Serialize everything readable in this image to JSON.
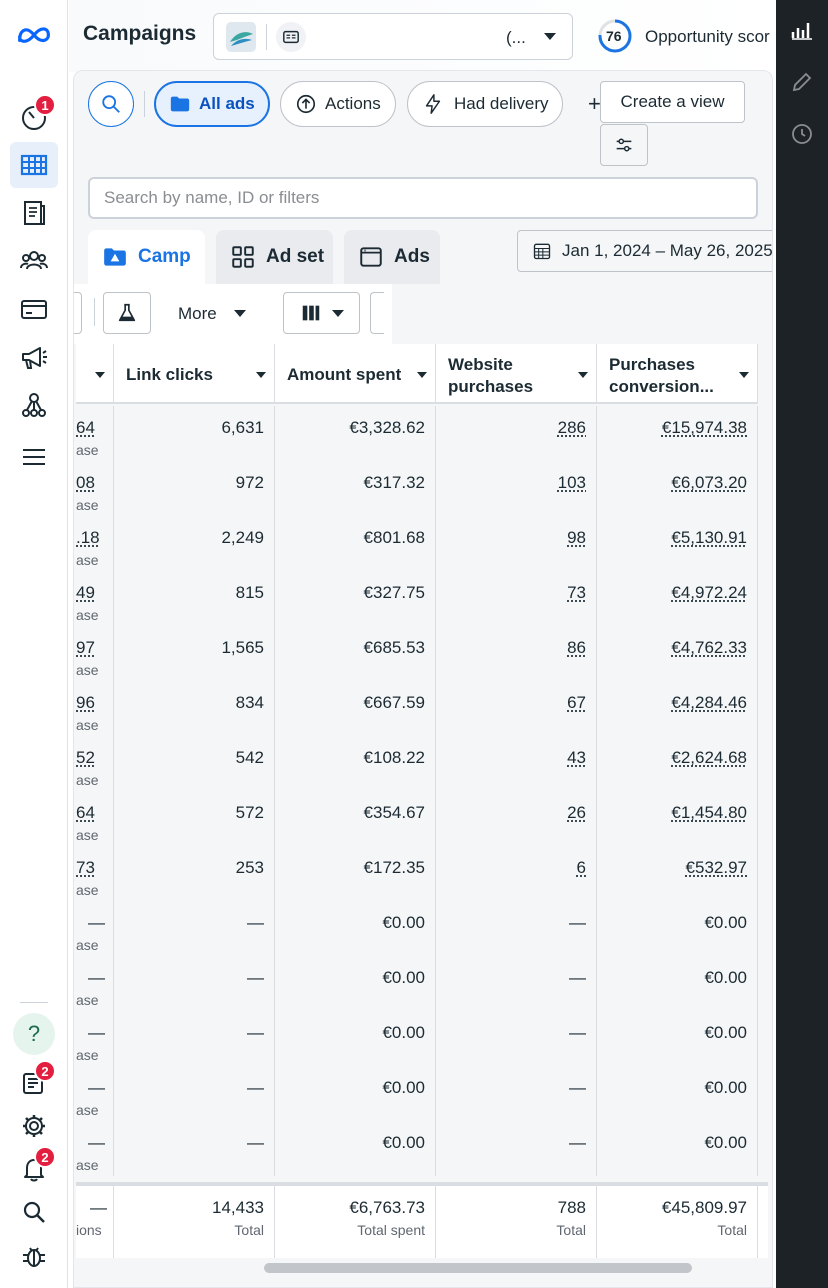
{
  "app": {
    "brand": "meta-logo",
    "accent": "#1b74e4"
  },
  "leftnav": {
    "items": [
      {
        "name": "account-overview",
        "icon": "gauge-icon",
        "badge": "1"
      },
      {
        "name": "campaigns",
        "icon": "table-icon",
        "active": true
      },
      {
        "name": "catalog",
        "icon": "catalog-icon"
      },
      {
        "name": "audiences",
        "icon": "audience-icon"
      },
      {
        "name": "billing",
        "icon": "card-icon"
      },
      {
        "name": "advertising",
        "icon": "megaphone-icon"
      },
      {
        "name": "business-tools",
        "icon": "hub-icon"
      },
      {
        "name": "all-tools",
        "icon": "menu-icon"
      }
    ],
    "bottom": [
      {
        "name": "help",
        "icon": "help-icon",
        "label": "?"
      },
      {
        "name": "news",
        "icon": "news-icon",
        "badge": "2"
      },
      {
        "name": "settings",
        "icon": "gear-icon"
      },
      {
        "name": "notifications",
        "icon": "bell-icon",
        "badge": "2"
      },
      {
        "name": "search",
        "icon": "search-icon"
      },
      {
        "name": "report-bug",
        "icon": "bug-icon"
      }
    ]
  },
  "header": {
    "title": "Campaigns",
    "account_text": "(...",
    "opportunity_score": "76",
    "opportunity_label": "Opportunity scor"
  },
  "toolbar": {
    "all_ads": "All ads",
    "actions": "Actions",
    "had_delivery": "Had delivery",
    "plus": "+",
    "create_view": "Create a view"
  },
  "search": {
    "placeholder": "Search by name, ID or filters"
  },
  "tabs": [
    {
      "label": "Camp",
      "icon": "campaign-icon"
    },
    {
      "label": "Ad set",
      "icon": "grid-icon"
    },
    {
      "label": "Ads",
      "icon": "ad-icon"
    }
  ],
  "date_range": "Jan 1, 2024 – May 26, 2025",
  "subbar": {
    "more": "More"
  },
  "table": {
    "columns": [
      {
        "label": ""
      },
      {
        "label": "Link clicks"
      },
      {
        "label": "Amount spent"
      },
      {
        "label": "Website purchases"
      },
      {
        "label": "Purchases conversion..."
      }
    ],
    "rows": [
      {
        "c0": "64",
        "c0s": "ase",
        "clicks": "6,631",
        "spent": "€3,328.62",
        "purch": "286",
        "conv": "€15,974.38",
        "u": true
      },
      {
        "c0": "08",
        "c0s": "ase",
        "clicks": "972",
        "spent": "€317.32",
        "purch": "103",
        "conv": "€6,073.20",
        "u": true
      },
      {
        "c0": ".18",
        "c0s": "ase",
        "clicks": "2,249",
        "spent": "€801.68",
        "purch": "98",
        "conv": "€5,130.91",
        "u": true
      },
      {
        "c0": "49",
        "c0s": "ase",
        "clicks": "815",
        "spent": "€327.75",
        "purch": "73",
        "conv": "€4,972.24",
        "u": true
      },
      {
        "c0": "97",
        "c0s": "ase",
        "clicks": "1,565",
        "spent": "€685.53",
        "purch": "86",
        "conv": "€4,762.33",
        "u": true
      },
      {
        "c0": "96",
        "c0s": "ase",
        "clicks": "834",
        "spent": "€667.59",
        "purch": "67",
        "conv": "€4,284.46",
        "u": true
      },
      {
        "c0": "52",
        "c0s": "ase",
        "clicks": "542",
        "spent": "€108.22",
        "purch": "43",
        "conv": "€2,624.68",
        "u": true
      },
      {
        "c0": "64",
        "c0s": "ase",
        "clicks": "572",
        "spent": "€354.67",
        "purch": "26",
        "conv": "€1,454.80",
        "u": true
      },
      {
        "c0": "73",
        "c0s": "ase",
        "clicks": "253",
        "spent": "€172.35",
        "purch": "6",
        "conv": "€532.97",
        "u": true
      },
      {
        "c0": "—",
        "c0s": "ase",
        "clicks": "—",
        "spent": "€0.00",
        "purch": "—",
        "conv": "€0.00",
        "u": false
      },
      {
        "c0": "—",
        "c0s": "ase",
        "clicks": "—",
        "spent": "€0.00",
        "purch": "—",
        "conv": "€0.00",
        "u": false
      },
      {
        "c0": "—",
        "c0s": "ase",
        "clicks": "—",
        "spent": "€0.00",
        "purch": "—",
        "conv": "€0.00",
        "u": false
      },
      {
        "c0": "—",
        "c0s": "ase",
        "clicks": "—",
        "spent": "€0.00",
        "purch": "—",
        "conv": "€0.00",
        "u": false
      },
      {
        "c0": "—",
        "c0s": "ase",
        "clicks": "—",
        "spent": "€0.00",
        "purch": "—",
        "conv": "€0.00",
        "u": false
      }
    ],
    "totals": {
      "c0": "—",
      "c0s": "ions",
      "clicks": "14,433",
      "clicks_sub": "Total",
      "spent": "€6,763.73",
      "spent_sub": "Total spent",
      "purch": "788",
      "purch_sub": "Total",
      "conv": "€45,809.97",
      "conv_sub": "Total"
    }
  }
}
